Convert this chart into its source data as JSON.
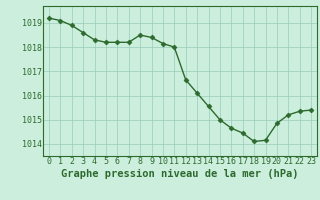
{
  "x": [
    0,
    1,
    2,
    3,
    4,
    5,
    6,
    7,
    8,
    9,
    10,
    11,
    12,
    13,
    14,
    15,
    16,
    17,
    18,
    19,
    20,
    21,
    22,
    23
  ],
  "y": [
    1019.2,
    1019.1,
    1018.9,
    1018.6,
    1018.3,
    1018.2,
    1018.2,
    1018.2,
    1018.5,
    1018.4,
    1018.15,
    1018.0,
    1016.65,
    1016.1,
    1015.55,
    1015.0,
    1014.65,
    1014.45,
    1014.1,
    1014.15,
    1014.85,
    1015.2,
    1015.35,
    1015.4
  ],
  "line_color": "#2d6a2d",
  "marker": "D",
  "markersize": 2.5,
  "linewidth": 1.0,
  "background_color": "#cceedd",
  "grid_color": "#99ccbb",
  "title": "Graphe pression niveau de la mer (hPa)",
  "xlabel_ticks": [
    0,
    1,
    2,
    3,
    4,
    5,
    6,
    7,
    8,
    9,
    10,
    11,
    12,
    13,
    14,
    15,
    16,
    17,
    18,
    19,
    20,
    21,
    22,
    23
  ],
  "ylabel_ticks": [
    1014,
    1015,
    1016,
    1017,
    1018,
    1019
  ],
  "ylim": [
    1013.5,
    1019.7
  ],
  "xlim": [
    -0.5,
    23.5
  ],
  "title_fontsize": 7.5,
  "tick_fontsize": 6,
  "title_color": "#2d6a2d",
  "tick_color": "#2d6a2d",
  "spine_color": "#2d6a2d"
}
